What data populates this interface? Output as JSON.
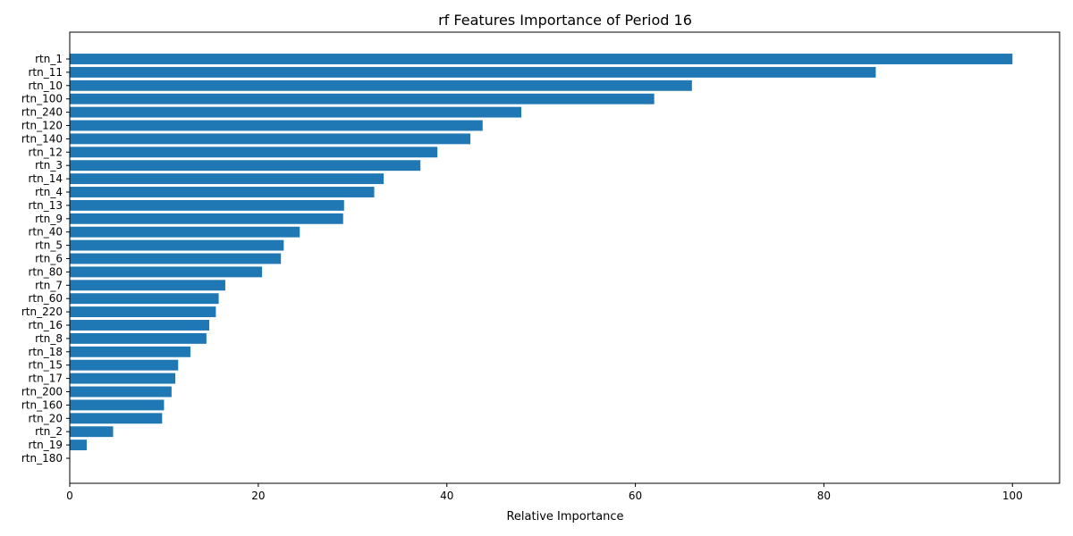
{
  "chart_data": {
    "type": "bar",
    "orientation": "horizontal",
    "title": "rf Features Importance of Period 16",
    "xlabel": "Relative Importance",
    "ylabel": "",
    "xlim": [
      0,
      105
    ],
    "xticks": [
      0,
      20,
      40,
      60,
      80,
      100
    ],
    "grid": false,
    "color": "#1f77b4",
    "categories": [
      "rtn_1",
      "rtn_11",
      "rtn_10",
      "rtn_100",
      "rtn_240",
      "rtn_120",
      "rtn_140",
      "rtn_12",
      "rtn_3",
      "rtn_14",
      "rtn_4",
      "rtn_13",
      "rtn_9",
      "rtn_40",
      "rtn_5",
      "rtn_6",
      "rtn_80",
      "rtn_7",
      "rtn_60",
      "rtn_220",
      "rtn_16",
      "rtn_8",
      "rtn_18",
      "rtn_15",
      "rtn_17",
      "rtn_200",
      "rtn_160",
      "rtn_20",
      "rtn_2",
      "rtn_19",
      "rtn_180"
    ],
    "values": [
      100,
      85.5,
      66,
      62,
      47.9,
      43.8,
      42.5,
      39,
      37.2,
      33.3,
      32.3,
      29.1,
      29,
      24.4,
      22.7,
      22.4,
      20.4,
      16.5,
      15.8,
      15.5,
      14.8,
      14.5,
      12.8,
      11.5,
      11.2,
      10.8,
      10,
      9.8,
      4.6,
      1.8,
      0
    ]
  }
}
